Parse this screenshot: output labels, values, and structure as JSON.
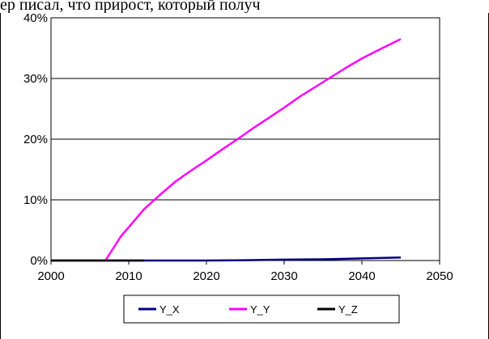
{
  "page": {
    "top_text": "ер писал, что прирост, который получ"
  },
  "chart_data": {
    "type": "line",
    "title": "",
    "xlabel": "",
    "ylabel": "",
    "xlim": [
      2000,
      2050
    ],
    "ylim": [
      0,
      0.4
    ],
    "x_ticks": [
      2000,
      2010,
      2020,
      2030,
      2040,
      2050
    ],
    "x_tick_labels": [
      "2000",
      "2010",
      "2020",
      "2030",
      "2040",
      "2050"
    ],
    "y_ticks": [
      0,
      0.1,
      0.2,
      0.3,
      0.4
    ],
    "y_tick_labels": [
      "0%",
      "10%",
      "20%",
      "30%",
      "40%"
    ],
    "grid": "horizontal",
    "legend_position": "bottom",
    "series": [
      {
        "name": "Y_X",
        "color": "#000080",
        "x": [
          2000,
          2005,
          2010,
          2015,
          2020,
          2025,
          2030,
          2035,
          2040,
          2045
        ],
        "y": [
          0,
          0,
          0,
          0,
          0,
          0.0005,
          0.0015,
          0.002,
          0.0035,
          0.005
        ]
      },
      {
        "name": "Y_Y",
        "color": "#ff00ff",
        "x": [
          2000,
          2005,
          2007,
          2008,
          2009,
          2010,
          2012,
          2014,
          2016,
          2018,
          2020,
          2022,
          2024,
          2026,
          2028,
          2030,
          2032,
          2034,
          2036,
          2038,
          2040,
          2042,
          2045
        ],
        "y": [
          0,
          0,
          0,
          0.02,
          0.04,
          0.055,
          0.085,
          0.108,
          0.13,
          0.148,
          0.165,
          0.183,
          0.2,
          0.218,
          0.235,
          0.252,
          0.27,
          0.286,
          0.302,
          0.318,
          0.333,
          0.346,
          0.365
        ]
      },
      {
        "name": "Y_Z",
        "color": "#000000",
        "x": [
          2000,
          2005,
          2010,
          2011,
          2012
        ],
        "y": [
          0,
          0,
          0,
          0,
          0
        ]
      }
    ]
  }
}
